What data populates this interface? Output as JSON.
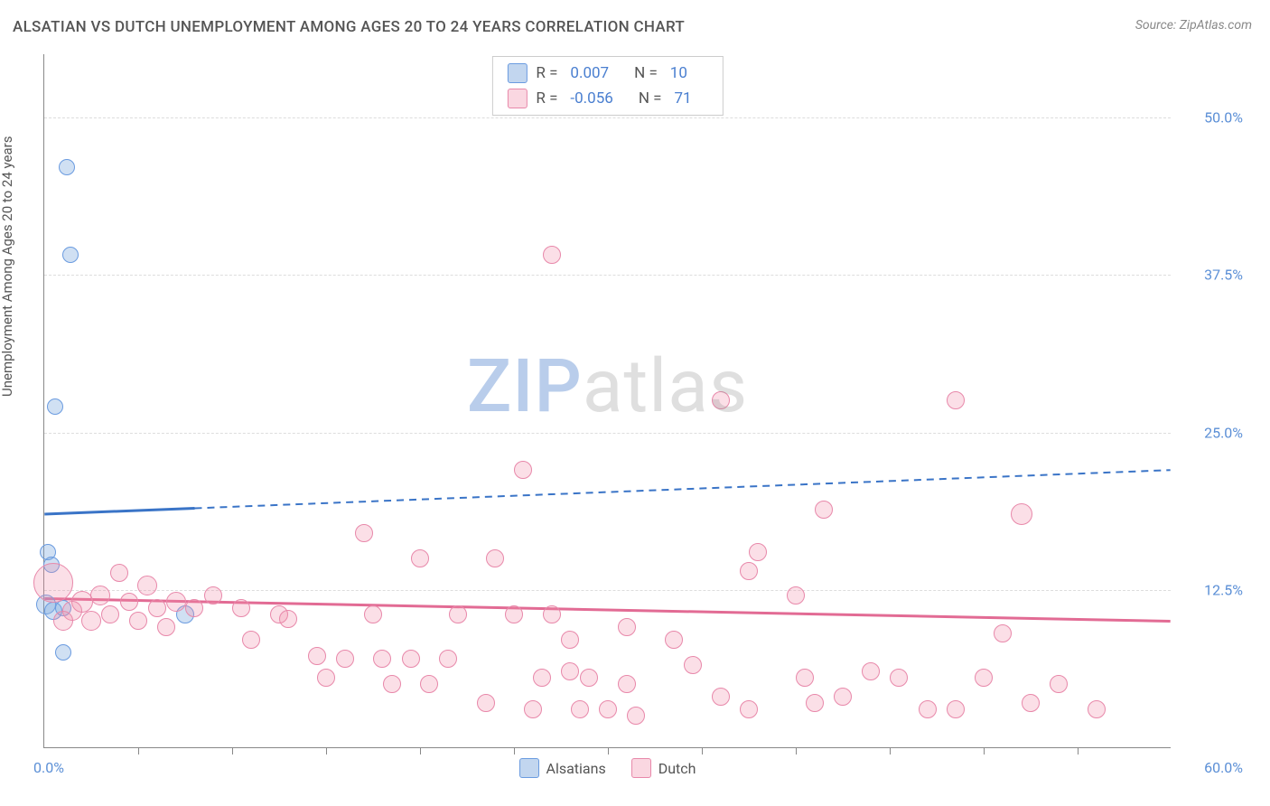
{
  "title": "ALSATIAN VS DUTCH UNEMPLOYMENT AMONG AGES 20 TO 24 YEARS CORRELATION CHART",
  "source": "Source: ZipAtlas.com",
  "y_axis_label": "Unemployment Among Ages 20 to 24 years",
  "watermark_a": "ZIP",
  "watermark_b": "atlas",
  "chart": {
    "type": "scatter",
    "xlim": [
      0,
      60
    ],
    "ylim": [
      0,
      55
    ],
    "x_min_label": "0.0%",
    "x_max_label": "60.0%",
    "x_tick_step": 5,
    "y_ticks": [
      12.5,
      25.0,
      37.5,
      50.0
    ],
    "y_tick_labels": [
      "12.5%",
      "25.0%",
      "37.5%",
      "50.0%"
    ],
    "grid_color": "#dddddd",
    "background_color": "#ffffff",
    "axis_color": "#888888",
    "label_color": "#5b8fd6"
  },
  "series": [
    {
      "name": "Alsatians",
      "color_fill": "rgba(120,165,220,0.35)",
      "color_stroke": "#6a9be0",
      "trend_color": "#3a74c7",
      "trend_solid_until_x": 8,
      "trend": {
        "y_at_x0": 18.5,
        "y_at_xmax": 22.0
      },
      "R_label": "R =",
      "R": "0.007",
      "N_label": "N =",
      "N": "10",
      "points": [
        {
          "x": 1.2,
          "y": 46.0,
          "r": 9
        },
        {
          "x": 1.4,
          "y": 39.0,
          "r": 9
        },
        {
          "x": 0.6,
          "y": 27.0,
          "r": 9
        },
        {
          "x": 0.2,
          "y": 15.5,
          "r": 9
        },
        {
          "x": 0.4,
          "y": 14.5,
          "r": 9
        },
        {
          "x": 0.1,
          "y": 11.3,
          "r": 11
        },
        {
          "x": 0.5,
          "y": 10.8,
          "r": 10
        },
        {
          "x": 1.0,
          "y": 11.0,
          "r": 9
        },
        {
          "x": 7.5,
          "y": 10.5,
          "r": 10
        },
        {
          "x": 1.0,
          "y": 7.5,
          "r": 9
        }
      ]
    },
    {
      "name": "Dutch",
      "color_fill": "rgba(240,140,170,0.28)",
      "color_stroke": "#e888aa",
      "trend_color": "#e26b94",
      "trend_solid_until_x": 60,
      "trend": {
        "y_at_x0": 11.8,
        "y_at_xmax": 10.0
      },
      "R_label": "R =",
      "R": "-0.056",
      "N_label": "N =",
      "N": "71",
      "points": [
        {
          "x": 0.5,
          "y": 13.0,
          "r": 22
        },
        {
          "x": 27.0,
          "y": 39.0,
          "r": 10
        },
        {
          "x": 36.0,
          "y": 27.5,
          "r": 10
        },
        {
          "x": 48.5,
          "y": 27.5,
          "r": 10
        },
        {
          "x": 25.5,
          "y": 22.0,
          "r": 10
        },
        {
          "x": 41.5,
          "y": 18.8,
          "r": 10
        },
        {
          "x": 52.0,
          "y": 18.5,
          "r": 12
        },
        {
          "x": 17.0,
          "y": 17.0,
          "r": 10
        },
        {
          "x": 38.0,
          "y": 15.5,
          "r": 10
        },
        {
          "x": 20.0,
          "y": 15.0,
          "r": 10
        },
        {
          "x": 24.0,
          "y": 15.0,
          "r": 10
        },
        {
          "x": 37.5,
          "y": 14.0,
          "r": 10
        },
        {
          "x": 4.0,
          "y": 13.8,
          "r": 10
        },
        {
          "x": 5.5,
          "y": 12.8,
          "r": 11
        },
        {
          "x": 3.0,
          "y": 12.0,
          "r": 11
        },
        {
          "x": 2.0,
          "y": 11.5,
          "r": 12
        },
        {
          "x": 4.5,
          "y": 11.5,
          "r": 10
        },
        {
          "x": 7.0,
          "y": 11.5,
          "r": 11
        },
        {
          "x": 9.0,
          "y": 12.0,
          "r": 10
        },
        {
          "x": 6.0,
          "y": 11.0,
          "r": 10
        },
        {
          "x": 8.0,
          "y": 11.0,
          "r": 10
        },
        {
          "x": 1.5,
          "y": 10.8,
          "r": 11
        },
        {
          "x": 3.5,
          "y": 10.5,
          "r": 10
        },
        {
          "x": 10.5,
          "y": 11.0,
          "r": 10
        },
        {
          "x": 12.5,
          "y": 10.5,
          "r": 10
        },
        {
          "x": 17.5,
          "y": 10.5,
          "r": 10
        },
        {
          "x": 22.0,
          "y": 10.5,
          "r": 10
        },
        {
          "x": 25.0,
          "y": 10.5,
          "r": 10
        },
        {
          "x": 27.0,
          "y": 10.5,
          "r": 10
        },
        {
          "x": 1.0,
          "y": 10.0,
          "r": 11
        },
        {
          "x": 2.5,
          "y": 10.0,
          "r": 11
        },
        {
          "x": 13.0,
          "y": 10.2,
          "r": 10
        },
        {
          "x": 31.0,
          "y": 9.5,
          "r": 10
        },
        {
          "x": 11.0,
          "y": 8.5,
          "r": 10
        },
        {
          "x": 28.0,
          "y": 8.5,
          "r": 10
        },
        {
          "x": 33.5,
          "y": 8.5,
          "r": 10
        },
        {
          "x": 51.0,
          "y": 9.0,
          "r": 10
        },
        {
          "x": 14.5,
          "y": 7.2,
          "r": 10
        },
        {
          "x": 16.0,
          "y": 7.0,
          "r": 10
        },
        {
          "x": 18.0,
          "y": 7.0,
          "r": 10
        },
        {
          "x": 19.5,
          "y": 7.0,
          "r": 10
        },
        {
          "x": 21.5,
          "y": 7.0,
          "r": 10
        },
        {
          "x": 28.0,
          "y": 6.0,
          "r": 10
        },
        {
          "x": 15.0,
          "y": 5.5,
          "r": 10
        },
        {
          "x": 18.5,
          "y": 5.0,
          "r": 10
        },
        {
          "x": 20.5,
          "y": 5.0,
          "r": 10
        },
        {
          "x": 26.5,
          "y": 5.5,
          "r": 10
        },
        {
          "x": 29.0,
          "y": 5.5,
          "r": 10
        },
        {
          "x": 31.0,
          "y": 5.0,
          "r": 10
        },
        {
          "x": 40.5,
          "y": 5.5,
          "r": 10
        },
        {
          "x": 45.5,
          "y": 5.5,
          "r": 10
        },
        {
          "x": 50.0,
          "y": 5.5,
          "r": 10
        },
        {
          "x": 23.5,
          "y": 3.5,
          "r": 10
        },
        {
          "x": 26.0,
          "y": 3.0,
          "r": 10
        },
        {
          "x": 28.5,
          "y": 3.0,
          "r": 10
        },
        {
          "x": 30.0,
          "y": 3.0,
          "r": 10
        },
        {
          "x": 31.5,
          "y": 2.5,
          "r": 10
        },
        {
          "x": 37.5,
          "y": 3.0,
          "r": 10
        },
        {
          "x": 41.0,
          "y": 3.5,
          "r": 10
        },
        {
          "x": 47.0,
          "y": 3.0,
          "r": 10
        },
        {
          "x": 48.5,
          "y": 3.0,
          "r": 10
        },
        {
          "x": 52.5,
          "y": 3.5,
          "r": 10
        },
        {
          "x": 56.0,
          "y": 3.0,
          "r": 10
        },
        {
          "x": 40.0,
          "y": 12.0,
          "r": 10
        },
        {
          "x": 44.0,
          "y": 6.0,
          "r": 10
        },
        {
          "x": 34.5,
          "y": 6.5,
          "r": 10
        },
        {
          "x": 36.0,
          "y": 4.0,
          "r": 10
        },
        {
          "x": 42.5,
          "y": 4.0,
          "r": 10
        },
        {
          "x": 54.0,
          "y": 5.0,
          "r": 10
        },
        {
          "x": 5.0,
          "y": 10.0,
          "r": 10
        },
        {
          "x": 6.5,
          "y": 9.5,
          "r": 10
        }
      ]
    }
  ]
}
